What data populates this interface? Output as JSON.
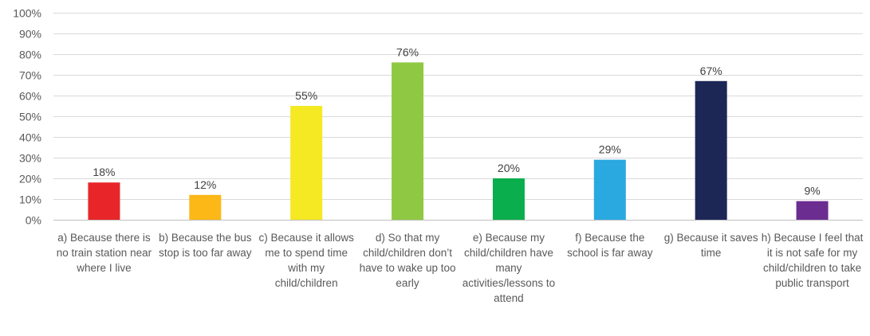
{
  "chart_data": {
    "type": "bar",
    "title": "",
    "xlabel": "",
    "ylabel": "",
    "ylim": [
      0,
      100
    ],
    "yticks": [
      0,
      10,
      20,
      30,
      40,
      50,
      60,
      70,
      80,
      90,
      100
    ],
    "ytick_labels": [
      "0%",
      "10%",
      "20%",
      "30%",
      "40%",
      "50%",
      "60%",
      "70%",
      "80%",
      "90%",
      "100%"
    ],
    "grid": true,
    "legend": "none",
    "categories": [
      "a) Because there is no train station near where I live",
      "b) Because the bus stop is too far away",
      "c) Because it allows me to spend time with my child/children",
      "d) So that my child/children don’t have to wake up too early",
      "e) Because my child/children have many activities/lessons to attend",
      "f) Because the school is far away",
      "g) Because it saves time",
      "h) Because I feel that it is not safe for my child/children to take public transport"
    ],
    "values": [
      18,
      12,
      55,
      76,
      20,
      29,
      67,
      9
    ],
    "data_labels": [
      "18%",
      "12%",
      "55%",
      "76%",
      "20%",
      "29%",
      "67%",
      "9%"
    ],
    "colors": [
      "#e8262a",
      "#fbb817",
      "#f4e923",
      "#8fc843",
      "#0aae4c",
      "#2aa8e0",
      "#1d2756",
      "#6c2d91"
    ]
  }
}
